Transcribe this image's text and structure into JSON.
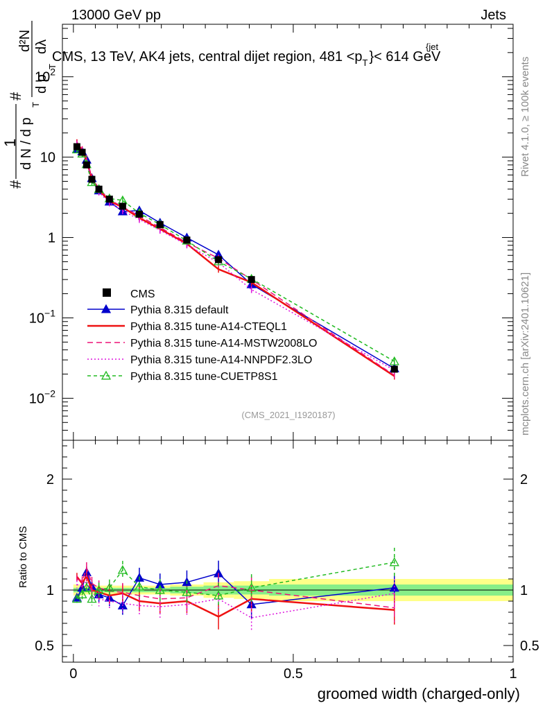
{
  "header": {
    "left": "13000 GeV pp",
    "right": "Jets"
  },
  "side_labels": {
    "rivet": "Rivet 4.1.0, ≥ 100k events",
    "source": "mcplots.cern.ch [arXiv:2401.10621]"
  },
  "chart_data": {
    "type": "line",
    "title": "CMS, 13 TeV, AK4 jets, central dijet region, 481 <p",
    "title_sup": "{jet",
    "title_sub": "T",
    "title_end": "}< 614 GeV",
    "analysis_tag": "(CMS_2021_I1920187)",
    "xlabel": "groomed width (charged-only)",
    "ylabel": "# 1/(dN/dp_T) d²N/(dp_T dλ)",
    "ylabel_parts": {
      "hash": "#",
      "one": "1",
      "dn": "d N / d p",
      "t": "T",
      "d2n": "d²N",
      "dpt": "d p",
      "dlambda": "dλ"
    },
    "ratio_ylabel": "Ratio to CMS",
    "xlim": [
      -0.025,
      1.0
    ],
    "ylim_log": [
      0.003,
      450
    ],
    "ratio_ylim": [
      0.35,
      2.35
    ],
    "x_ticks": [
      {
        "v": 0,
        "label": "0"
      },
      {
        "v": 0.5,
        "label": "0.5"
      },
      {
        "v": 1,
        "label": "1"
      }
    ],
    "y_ticks": [
      {
        "v": 0.01,
        "base": "10",
        "exp": "−2"
      },
      {
        "v": 0.1,
        "base": "10",
        "exp": "−1"
      },
      {
        "v": 1,
        "base": "1",
        "exp": ""
      },
      {
        "v": 10,
        "base": "10",
        "exp": ""
      },
      {
        "v": 100,
        "base": "10",
        "exp": "2"
      }
    ],
    "ratio_ticks": [
      {
        "v": 0.5,
        "label": "0.5"
      },
      {
        "v": 1,
        "label": "1"
      },
      {
        "v": 2,
        "label": "2"
      }
    ],
    "x": [
      0.008,
      0.02,
      0.03,
      0.042,
      0.058,
      0.082,
      0.112,
      0.15,
      0.197,
      0.258,
      0.33,
      0.405,
      0.73
    ],
    "bin_edges": [
      0.0,
      0.015,
      0.025,
      0.035,
      0.05,
      0.067,
      0.097,
      0.127,
      0.173,
      0.22,
      0.296,
      0.365,
      0.445,
      1.0
    ],
    "data": {
      "name": "CMS",
      "values": [
        13.5,
        11.5,
        8.0,
        5.3,
        4.0,
        3.0,
        2.45,
        1.95,
        1.45,
        0.93,
        0.53,
        0.3,
        0.023
      ],
      "band_stat": [
        0.02,
        0.02,
        0.02,
        0.02,
        0.02,
        0.02,
        0.02,
        0.02,
        0.02,
        0.03,
        0.04,
        0.04,
        0.05
      ],
      "band_total": [
        0.05,
        0.05,
        0.04,
        0.04,
        0.04,
        0.04,
        0.04,
        0.04,
        0.04,
        0.05,
        0.07,
        0.08,
        0.1
      ]
    },
    "series": [
      {
        "name": "Pythia 8.315 default",
        "color": "#0000cc",
        "dash": "",
        "marker": "triangle-filled",
        "ratio": [
          0.93,
          1.02,
          1.16,
          1.03,
          0.96,
          0.93,
          0.86,
          1.11,
          1.05,
          1.07,
          1.15,
          0.87,
          1.02
        ]
      },
      {
        "name": "Pythia 8.315 tune-A14-CTEQL1",
        "color": "#ee1111",
        "dash": "",
        "marker": "none",
        "ratio": [
          1.12,
          1.06,
          1.13,
          1.0,
          0.98,
          0.95,
          0.97,
          0.9,
          0.88,
          0.9,
          0.76,
          0.92,
          0.82
        ]
      },
      {
        "name": "Pythia 8.315 tune-A14-MSTW2008LO",
        "color": "#ee1177",
        "dash": "8,5",
        "marker": "none",
        "ratio": [
          1.1,
          1.08,
          1.2,
          1.06,
          1.02,
          0.99,
          0.98,
          0.95,
          0.92,
          0.93,
          1.04,
          1.0,
          0.84
        ]
      },
      {
        "name": "Pythia 8.315 tune-A14-NNPDF2.3LO",
        "color": "#dd11dd",
        "dash": "2,3",
        "marker": "none",
        "ratio": [
          1.05,
          1.03,
          1.08,
          0.98,
          0.92,
          0.9,
          0.88,
          0.86,
          0.85,
          0.87,
          0.92,
          0.75,
          0.97
        ]
      },
      {
        "name": "Pythia 8.315 tune-CUETP8S1",
        "color": "#22bb22",
        "dash": "5,4",
        "marker": "triangle-open",
        "ratio": [
          0.92,
          0.96,
          1.02,
          0.92,
          1.0,
          1.02,
          1.18,
          1.03,
          1.0,
          0.98,
          0.95,
          1.02,
          1.25
        ]
      }
    ],
    "legend_position": "middle-left"
  }
}
